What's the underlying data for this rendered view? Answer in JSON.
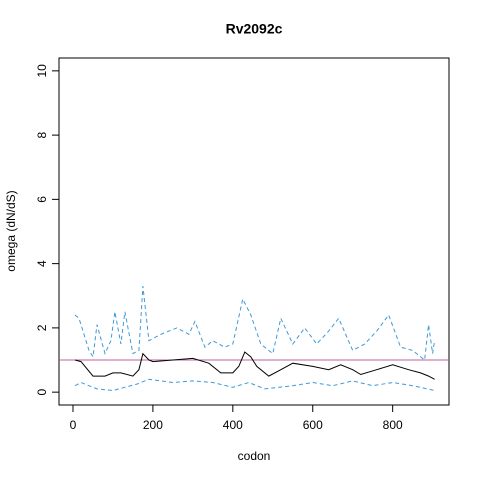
{
  "chart_data": {
    "type": "line",
    "title": "Rv2092c",
    "xlabel": "codon",
    "ylabel": "omega (dN/dS)",
    "xlim": [
      -35,
      941
    ],
    "ylim": [
      -0.4,
      10.4
    ],
    "xticks": [
      0,
      200,
      400,
      600,
      800
    ],
    "yticks": [
      0,
      2,
      4,
      6,
      8,
      10
    ],
    "hline": 1,
    "hline_color": "#c060a0",
    "series": [
      {
        "color": "#000000",
        "dash": false,
        "x": [
          5,
          20,
          50,
          80,
          100,
          120,
          150,
          165,
          175,
          190,
          200,
          250,
          300,
          340,
          370,
          400,
          415,
          430,
          445,
          460,
          490,
          520,
          550,
          600,
          640,
          670,
          700,
          720,
          760,
          800,
          840,
          870,
          890,
          905
        ],
        "values": [
          1.0,
          0.95,
          0.5,
          0.5,
          0.6,
          0.6,
          0.5,
          0.7,
          1.2,
          1.0,
          0.95,
          1.0,
          1.05,
          0.9,
          0.6,
          0.6,
          0.8,
          1.25,
          1.1,
          0.8,
          0.5,
          0.7,
          0.9,
          0.8,
          0.7,
          0.85,
          0.7,
          0.55,
          0.7,
          0.85,
          0.7,
          0.6,
          0.5,
          0.4
        ]
      },
      {
        "color": "#3d9ad8",
        "dash": true,
        "x": [
          5,
          15,
          40,
          50,
          60,
          80,
          95,
          105,
          120,
          130,
          150,
          165,
          175,
          190,
          220,
          260,
          290,
          305,
          330,
          350,
          380,
          400,
          425,
          445,
          470,
          500,
          520,
          550,
          580,
          610,
          640,
          665,
          700,
          730,
          760,
          790,
          820,
          850,
          880,
          890,
          900,
          905
        ],
        "values": [
          2.4,
          2.3,
          1.3,
          1.1,
          2.1,
          1.2,
          1.6,
          2.5,
          1.5,
          2.5,
          1.2,
          1.3,
          3.3,
          1.6,
          1.8,
          2.0,
          1.8,
          2.2,
          1.4,
          1.6,
          1.4,
          1.5,
          2.9,
          2.4,
          1.5,
          1.2,
          2.3,
          1.5,
          2.0,
          1.5,
          1.9,
          2.3,
          1.3,
          1.5,
          1.9,
          2.4,
          1.4,
          1.3,
          1.0,
          2.1,
          1.2,
          1.6
        ]
      },
      {
        "color": "#3d9ad8",
        "dash": true,
        "x": [
          5,
          20,
          60,
          100,
          160,
          190,
          250,
          300,
          350,
          400,
          440,
          480,
          550,
          600,
          650,
          700,
          750,
          800,
          850,
          905
        ],
        "values": [
          0.2,
          0.3,
          0.1,
          0.05,
          0.25,
          0.4,
          0.3,
          0.35,
          0.3,
          0.15,
          0.3,
          0.1,
          0.2,
          0.3,
          0.2,
          0.35,
          0.2,
          0.3,
          0.2,
          0.05
        ]
      }
    ]
  }
}
